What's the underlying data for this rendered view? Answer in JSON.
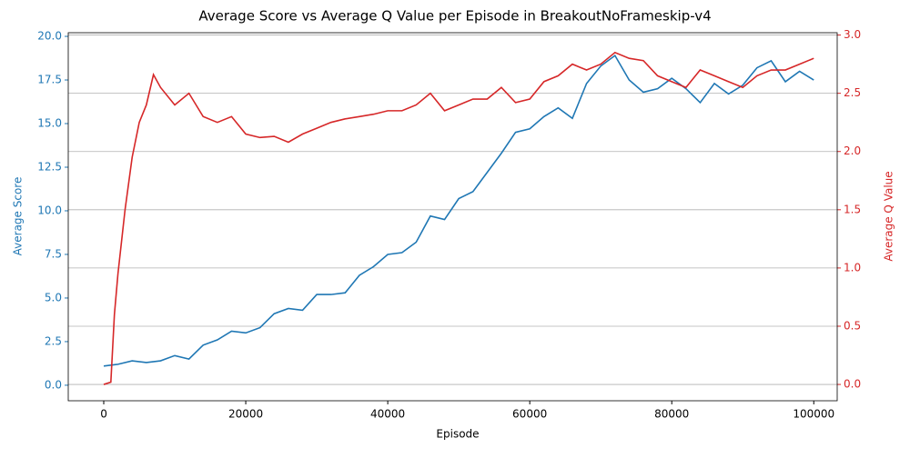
{
  "chart_data": {
    "type": "line",
    "title": "Average Score vs Average Q Value per Episode in BreakoutNoFrameskip-v4",
    "x_label": "Episode",
    "y_label": "Average Score",
    "y2_label": "Average Q Value",
    "xlim": [
      -5000,
      103300
    ],
    "xticks": [
      0,
      20000,
      40000,
      60000,
      80000,
      100000
    ],
    "ylim": [
      -0.89,
      20.21
    ],
    "yticks": [
      {
        "value": 0,
        "label": "0.0"
      },
      2.5,
      {
        "value": 5,
        "label": "5.0"
      },
      7.5,
      {
        "value": 10,
        "label": "10.0"
      },
      12.5,
      {
        "value": 15,
        "label": "15.0"
      },
      17.5,
      {
        "value": 20,
        "label": "20.0"
      }
    ],
    "y2lim": [
      -0.14,
      3.02
    ],
    "y2ticks": [
      {
        "value": 0,
        "label": "0.0"
      },
      0.5,
      {
        "value": 1,
        "label": "1.0"
      },
      1.5,
      {
        "value": 2,
        "label": "2.0"
      },
      2.5,
      {
        "value": 3,
        "label": "3.0"
      }
    ],
    "grid": "y2",
    "series": [
      {
        "name": "Average Score",
        "color": "#1f77b4",
        "axis": "y",
        "x": [
          0,
          2000,
          4000,
          6000,
          8000,
          10000,
          12000,
          14000,
          16000,
          18000,
          20000,
          22000,
          24000,
          26000,
          28000,
          30000,
          32000,
          34000,
          36000,
          38000,
          40000,
          42000,
          44000,
          46000,
          48000,
          50000,
          52000,
          54000,
          56000,
          58000,
          60000,
          62000,
          64000,
          66000,
          68000,
          70000,
          72000,
          74000,
          76000,
          78000,
          80000,
          82000,
          84000,
          86000,
          88000,
          90000,
          92000,
          94000,
          96000,
          98000,
          100000
        ],
        "values": [
          1.1,
          1.2,
          1.4,
          1.3,
          1.4,
          1.7,
          1.5,
          2.3,
          2.6,
          3.1,
          3.0,
          3.3,
          4.1,
          4.4,
          4.3,
          5.2,
          5.2,
          5.3,
          6.3,
          6.8,
          7.5,
          7.6,
          8.2,
          9.7,
          9.5,
          10.7,
          11.1,
          12.2,
          13.3,
          14.5,
          14.7,
          15.4,
          15.9,
          15.3,
          17.3,
          18.3,
          18.9,
          17.5,
          16.8,
          17.0,
          17.6,
          17.0,
          16.2,
          17.3,
          16.7,
          17.2,
          18.2,
          18.6,
          17.4,
          18.0,
          17.5
        ]
      },
      {
        "name": "Average Q Value",
        "color": "#d62728",
        "axis": "y2",
        "x": [
          0,
          1000,
          1500,
          2000,
          3000,
          4000,
          5000,
          6000,
          7000,
          8000,
          10000,
          12000,
          14000,
          16000,
          18000,
          20000,
          22000,
          24000,
          26000,
          28000,
          30000,
          32000,
          34000,
          36000,
          38000,
          40000,
          42000,
          44000,
          46000,
          48000,
          50000,
          52000,
          54000,
          56000,
          58000,
          60000,
          62000,
          64000,
          66000,
          68000,
          70000,
          72000,
          74000,
          76000,
          78000,
          80000,
          82000,
          84000,
          86000,
          88000,
          90000,
          92000,
          94000,
          96000,
          98000,
          100000
        ],
        "values": [
          0.0,
          0.02,
          0.6,
          0.95,
          1.5,
          1.95,
          2.25,
          2.4,
          2.66,
          2.55,
          2.4,
          2.5,
          2.3,
          2.25,
          2.3,
          2.15,
          2.12,
          2.13,
          2.08,
          2.15,
          2.2,
          2.25,
          2.28,
          2.3,
          2.32,
          2.35,
          2.35,
          2.4,
          2.5,
          2.35,
          2.4,
          2.45,
          2.45,
          2.55,
          2.42,
          2.45,
          2.6,
          2.65,
          2.75,
          2.7,
          2.75,
          2.85,
          2.8,
          2.78,
          2.65,
          2.6,
          2.55,
          2.7,
          2.65,
          2.6,
          2.55,
          2.65,
          2.7,
          2.7,
          2.75,
          2.8
        ]
      }
    ]
  }
}
